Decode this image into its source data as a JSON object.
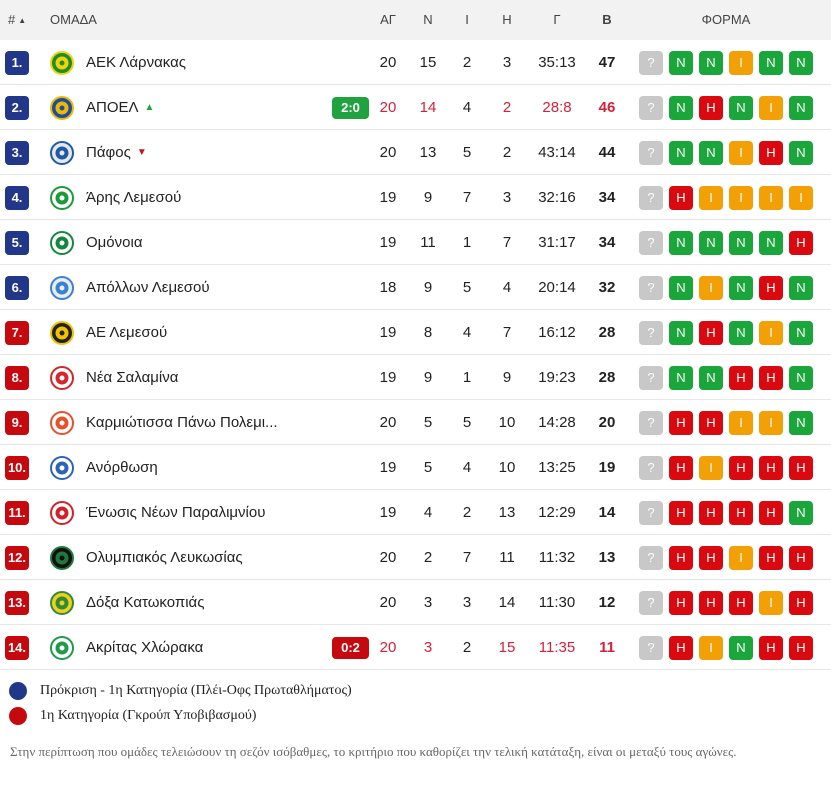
{
  "header": {
    "rank": "#",
    "team": "ΟΜΑΔΑ",
    "played": "ΑΓ",
    "wins": "Ν",
    "draws": "Ι",
    "losses": "Η",
    "goals": "Γ",
    "points": "Β",
    "form": "ΦΟΡΜΑ"
  },
  "icons": {
    "sort": "sort-up-icon",
    "logo": "team-logo-icon"
  },
  "colors": {
    "promotion": "#22378a",
    "relegation": "#c6090f",
    "win": "#1aa63a",
    "loss": "#d9090f",
    "draw": "#f3a007",
    "unknown": "#c8c8c8",
    "highlight": "#d81f3a"
  },
  "rows": [
    {
      "rank": "1.",
      "zone": "blue",
      "team": "ΑΕΚ Λάρνακας",
      "logo": {
        "c1": "#f5d10a",
        "c2": "#1b8f2e"
      },
      "arrow": "",
      "live": "",
      "live_type": "",
      "highlight": false,
      "played": "20",
      "wins": "15",
      "draws": "2",
      "losses": "3",
      "goals": "35:13",
      "points": "47",
      "form": [
        "?",
        "N",
        "N",
        "I",
        "N",
        "N"
      ]
    },
    {
      "rank": "2.",
      "zone": "blue",
      "team": "ΑΠΟΕΛ",
      "logo": {
        "c1": "#f2b800",
        "c2": "#1a4ea3"
      },
      "arrow": "up",
      "live": "2:0",
      "live_type": "win",
      "highlight": true,
      "played": "20",
      "wins": "14",
      "draws": "4",
      "losses": "2",
      "goals": "28:8",
      "points": "46",
      "form": [
        "?",
        "N",
        "H",
        "N",
        "I",
        "N"
      ]
    },
    {
      "rank": "3.",
      "zone": "blue",
      "team": "Πάφος",
      "logo": {
        "c1": "#1e5aa8",
        "c2": "#e8e8e8"
      },
      "arrow": "down",
      "live": "",
      "live_type": "",
      "highlight": false,
      "played": "20",
      "wins": "13",
      "draws": "5",
      "losses": "2",
      "goals": "43:14",
      "points": "44",
      "form": [
        "?",
        "N",
        "N",
        "I",
        "H",
        "N"
      ]
    },
    {
      "rank": "4.",
      "zone": "blue",
      "team": "Άρης Λεμεσού",
      "logo": {
        "c1": "#1b9a3a",
        "c2": "#ffffff"
      },
      "arrow": "",
      "live": "",
      "live_type": "",
      "highlight": false,
      "played": "19",
      "wins": "9",
      "draws": "7",
      "losses": "3",
      "goals": "32:16",
      "points": "34",
      "form": [
        "?",
        "H",
        "I",
        "I",
        "I",
        "I"
      ]
    },
    {
      "rank": "5.",
      "zone": "blue",
      "team": "Ομόνοια",
      "logo": {
        "c1": "#13883a",
        "c2": "#ffffff"
      },
      "arrow": "",
      "live": "",
      "live_type": "",
      "highlight": false,
      "played": "19",
      "wins": "11",
      "draws": "1",
      "losses": "7",
      "goals": "31:17",
      "points": "34",
      "form": [
        "?",
        "N",
        "N",
        "N",
        "N",
        "H"
      ]
    },
    {
      "rank": "6.",
      "zone": "blue",
      "team": "Απόλλων Λεμεσού",
      "logo": {
        "c1": "#3f7fd0",
        "c2": "#e6eef8"
      },
      "arrow": "",
      "live": "",
      "live_type": "",
      "highlight": false,
      "played": "18",
      "wins": "9",
      "draws": "5",
      "losses": "4",
      "goals": "20:14",
      "points": "32",
      "form": [
        "?",
        "N",
        "I",
        "N",
        "H",
        "N"
      ]
    },
    {
      "rank": "7.",
      "zone": "red",
      "team": "ΑΕ Λεμεσού",
      "logo": {
        "c1": "#f2c200",
        "c2": "#222222"
      },
      "arrow": "",
      "live": "",
      "live_type": "",
      "highlight": false,
      "played": "19",
      "wins": "8",
      "draws": "4",
      "losses": "7",
      "goals": "16:12",
      "points": "28",
      "form": [
        "?",
        "N",
        "H",
        "N",
        "I",
        "N"
      ]
    },
    {
      "rank": "8.",
      "zone": "red",
      "team": "Νέα Σαλαμίνα",
      "logo": {
        "c1": "#d6262b",
        "c2": "#ffffff"
      },
      "arrow": "",
      "live": "",
      "live_type": "",
      "highlight": false,
      "played": "19",
      "wins": "9",
      "draws": "1",
      "losses": "9",
      "goals": "19:23",
      "points": "28",
      "form": [
        "?",
        "N",
        "N",
        "H",
        "H",
        "N"
      ]
    },
    {
      "rank": "9.",
      "zone": "red",
      "team": "Καρμιώτισσα Πάνω Πολεμι...",
      "logo": {
        "c1": "#e8502a",
        "c2": "#ffffff"
      },
      "arrow": "",
      "live": "",
      "live_type": "",
      "highlight": false,
      "played": "20",
      "wins": "5",
      "draws": "5",
      "losses": "10",
      "goals": "14:28",
      "points": "20",
      "form": [
        "?",
        "H",
        "H",
        "I",
        "I",
        "N"
      ]
    },
    {
      "rank": "10.",
      "zone": "red",
      "team": "Ανόρθωση",
      "logo": {
        "c1": "#2d63b7",
        "c2": "#ffffff"
      },
      "arrow": "",
      "live": "",
      "live_type": "",
      "highlight": false,
      "played": "19",
      "wins": "5",
      "draws": "4",
      "losses": "10",
      "goals": "13:25",
      "points": "19",
      "form": [
        "?",
        "H",
        "I",
        "H",
        "H",
        "H"
      ]
    },
    {
      "rank": "11.",
      "zone": "red",
      "team": "Ένωσις Νέων Παραλιμνίου",
      "logo": {
        "c1": "#d52028",
        "c2": "#ffffff"
      },
      "arrow": "",
      "live": "",
      "live_type": "",
      "highlight": false,
      "played": "19",
      "wins": "4",
      "draws": "2",
      "losses": "13",
      "goals": "12:29",
      "points": "14",
      "form": [
        "?",
        "H",
        "H",
        "H",
        "H",
        "N"
      ]
    },
    {
      "rank": "12.",
      "zone": "red",
      "team": "Ολυμπιακός Λευκωσίας",
      "logo": {
        "c1": "#1d7a3a",
        "c2": "#111111"
      },
      "arrow": "",
      "live": "",
      "live_type": "",
      "highlight": false,
      "played": "20",
      "wins": "2",
      "draws": "7",
      "losses": "11",
      "goals": "11:32",
      "points": "13",
      "form": [
        "?",
        "H",
        "H",
        "I",
        "H",
        "H"
      ]
    },
    {
      "rank": "13.",
      "zone": "red",
      "team": "Δόξα Κατωκοπιάς",
      "logo": {
        "c1": "#2f8a3c",
        "c2": "#f2cf1a"
      },
      "arrow": "",
      "live": "",
      "live_type": "",
      "highlight": false,
      "played": "20",
      "wins": "3",
      "draws": "3",
      "losses": "14",
      "goals": "11:30",
      "points": "12",
      "form": [
        "?",
        "H",
        "H",
        "H",
        "I",
        "H"
      ]
    },
    {
      "rank": "14.",
      "zone": "red",
      "team": "Ακρίτας Χλώρακα",
      "logo": {
        "c1": "#1e9a4a",
        "c2": "#ffffff"
      },
      "arrow": "",
      "live": "0:2",
      "live_type": "loss",
      "highlight": true,
      "played": "20",
      "wins": "3",
      "draws": "2",
      "losses": "15",
      "goals": "11:35",
      "points": "11",
      "form": [
        "?",
        "H",
        "I",
        "N",
        "H",
        "H"
      ]
    }
  ],
  "legend": [
    {
      "color": "blue",
      "label": "Πρόκριση - 1η Κατηγορία (Πλέι-Οφς Πρωταθλήματος)"
    },
    {
      "color": "red",
      "label": "1η Κατηγορία (Γκρούπ Υποβιβασμού)"
    }
  ],
  "note": "Στην περίπτωση που ομάδες τελειώσουν τη σεζόν ισόβαθμες, το κριτήριο που καθορίζει την τελική κατάταξη, είναι οι μεταξύ τους αγώνες."
}
